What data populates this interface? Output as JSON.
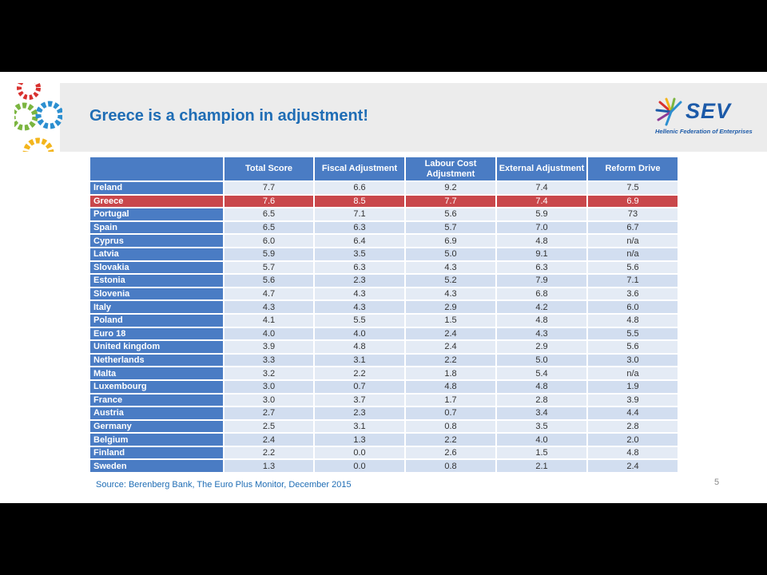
{
  "slide": {
    "title": "Greece is a champion in adjustment!",
    "logo_text": "SEV",
    "logo_subtitle": "Hellenic Federation of Enterprises",
    "source": "Source: Berenberg Bank, The Euro Plus Monitor, December 2015",
    "page_number": "5",
    "colors": {
      "header_blue": "#4a7cc4",
      "highlight_red": "#c9474b",
      "cell_light": "#e4ebf5",
      "title_blue": "#1f6db5"
    }
  },
  "table": {
    "headers": [
      "",
      "Total Score",
      "Fiscal Adjustment",
      "Labour Cost Adjustment",
      "External Adjustment",
      "Reform Drive"
    ],
    "rows": [
      [
        "Ireland",
        "7.7",
        "6.6",
        "9.2",
        "7.4",
        "7.5"
      ],
      [
        "Greece",
        "7.6",
        "8.5",
        "7.7",
        "7.4",
        "6.9"
      ],
      [
        "Portugal",
        "6.5",
        "7.1",
        "5.6",
        "5.9",
        "73"
      ],
      [
        "Spain",
        "6.5",
        "6.3",
        "5.7",
        "7.0",
        "6.7"
      ],
      [
        "Cyprus",
        "6.0",
        "6.4",
        "6.9",
        "4.8",
        "n/a"
      ],
      [
        "Latvia",
        "5.9",
        "3.5",
        "5.0",
        "9.1",
        "n/a"
      ],
      [
        "Slovakia",
        "5.7",
        "6.3",
        "4.3",
        "6.3",
        "5.6"
      ],
      [
        "Estonia",
        "5.6",
        "2.3",
        "5.2",
        "7.9",
        "7.1"
      ],
      [
        "Slovenia",
        "4.7",
        "4.3",
        "4.3",
        "6.8",
        "3.6"
      ],
      [
        "Italy",
        "4.3",
        "4.3",
        "2.9",
        "4.2",
        "6.0"
      ],
      [
        "Poland",
        "4.1",
        "5.5",
        "1.5",
        "4.8",
        "4.8"
      ],
      [
        "Euro 18",
        "4.0",
        "4.0",
        "2.4",
        "4.3",
        "5.5"
      ],
      [
        "United kingdom",
        "3.9",
        "4.8",
        "2.4",
        "2.9",
        "5.6"
      ],
      [
        "Netherlands",
        "3.3",
        "3.1",
        "2.2",
        "5.0",
        "3.0"
      ],
      [
        "Malta",
        "3.2",
        "2.2",
        "1.8",
        "5.4",
        "n/a"
      ],
      [
        "Luxembourg",
        "3.0",
        "0.7",
        "4.8",
        "4.8",
        "1.9"
      ],
      [
        "France",
        "3.0",
        "3.7",
        "1.7",
        "2.8",
        "3.9"
      ],
      [
        "Austria",
        "2.7",
        "2.3",
        "0.7",
        "3.4",
        "4.4"
      ],
      [
        "Germany",
        "2.5",
        "3.1",
        "0.8",
        "3.5",
        "2.8"
      ],
      [
        "Belgium",
        "2.4",
        "1.3",
        "2.2",
        "4.0",
        "2.0"
      ],
      [
        "Finland",
        "2.2",
        "0.0",
        "2.6",
        "1.5",
        "4.8"
      ],
      [
        "Sweden",
        "1.3",
        "0.0",
        "0.8",
        "2.1",
        "2.4"
      ]
    ],
    "highlight_row": "Greece"
  }
}
